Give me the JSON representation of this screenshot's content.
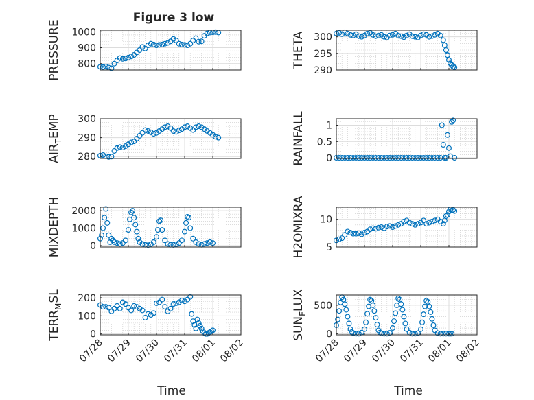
{
  "figure": {
    "title": "Figure 3 low",
    "marker_color": "#0072bd",
    "x_ticks": [
      "07/28",
      "07/29",
      "07/30",
      "07/31",
      "08/01",
      "08/02"
    ],
    "xlabel": "Time"
  },
  "chart_data": [
    {
      "type": "scatter",
      "ylabel": "PRESSURE",
      "xlim": [
        0,
        5
      ],
      "ylim": [
        760,
        1010
      ],
      "yticks": [
        "800",
        "900",
        "1000"
      ],
      "ytick_values": [
        800,
        900,
        1000
      ],
      "x": [
        0.0,
        0.1,
        0.2,
        0.3,
        0.4,
        0.5,
        0.6,
        0.7,
        0.8,
        0.9,
        1.0,
        1.1,
        1.2,
        1.3,
        1.4,
        1.5,
        1.6,
        1.7,
        1.8,
        1.9,
        2.0,
        2.1,
        2.2,
        2.3,
        2.4,
        2.5,
        2.6,
        2.7,
        2.8,
        2.9,
        3.0,
        3.1,
        3.2,
        3.3,
        3.4,
        3.5,
        3.6,
        3.7,
        3.8,
        3.9,
        4.0,
        4.1,
        4.2
      ],
      "y": [
        780,
        778,
        782,
        775,
        770,
        800,
        820,
        835,
        830,
        832,
        838,
        845,
        855,
        870,
        885,
        905,
        895,
        915,
        925,
        920,
        915,
        918,
        920,
        925,
        930,
        940,
        955,
        945,
        925,
        920,
        918,
        915,
        925,
        945,
        960,
        938,
        940,
        975,
        990,
        995,
        997,
        998,
        995
      ]
    },
    {
      "type": "scatter",
      "ylabel": "THETA",
      "xlim": [
        0,
        5
      ],
      "ylim": [
        290,
        302
      ],
      "yticks": [
        "290",
        "295",
        "300"
      ],
      "ytick_values": [
        290,
        295,
        300
      ],
      "x": [
        0.0,
        0.1,
        0.2,
        0.3,
        0.4,
        0.5,
        0.6,
        0.7,
        0.8,
        0.9,
        1.0,
        1.1,
        1.2,
        1.3,
        1.4,
        1.5,
        1.6,
        1.7,
        1.8,
        1.9,
        2.0,
        2.1,
        2.2,
        2.3,
        2.4,
        2.5,
        2.6,
        2.7,
        2.8,
        2.9,
        3.0,
        3.1,
        3.2,
        3.3,
        3.4,
        3.5,
        3.6,
        3.7,
        3.8,
        3.85,
        3.9,
        3.95,
        4.0,
        4.05,
        4.1,
        4.15,
        4.2
      ],
      "y": [
        301.0,
        301.2,
        300.8,
        301.4,
        301.0,
        300.6,
        300.4,
        300.8,
        300.2,
        300.0,
        300.4,
        301.0,
        301.2,
        300.6,
        300.2,
        300.4,
        300.6,
        300.0,
        299.8,
        300.4,
        300.6,
        301.0,
        300.4,
        300.2,
        299.9,
        300.4,
        300.8,
        300.2,
        300.0,
        299.8,
        300.4,
        300.8,
        300.6,
        300.0,
        300.2,
        300.6,
        301.0,
        300.4,
        299.0,
        297.5,
        296.0,
        294.5,
        293.0,
        292.0,
        291.5,
        291.0,
        290.8
      ]
    },
    {
      "type": "scatter",
      "ylabel": "AIR_TEMP",
      "xlim": [
        0,
        5
      ],
      "ylim": [
        279,
        300
      ],
      "yticks": [
        "280",
        "290",
        "300"
      ],
      "ytick_values": [
        280,
        290,
        300
      ],
      "x": [
        0.0,
        0.1,
        0.2,
        0.3,
        0.4,
        0.5,
        0.6,
        0.7,
        0.8,
        0.9,
        1.0,
        1.1,
        1.2,
        1.3,
        1.4,
        1.5,
        1.6,
        1.7,
        1.8,
        1.9,
        2.0,
        2.1,
        2.2,
        2.3,
        2.4,
        2.5,
        2.6,
        2.7,
        2.8,
        2.9,
        3.0,
        3.1,
        3.2,
        3.3,
        3.4,
        3.5,
        3.6,
        3.7,
        3.8,
        3.9,
        4.0,
        4.1,
        4.2
      ],
      "y": [
        280.5,
        280.8,
        280.2,
        279.8,
        280.0,
        283.0,
        284.5,
        285.0,
        284.8,
        285.5,
        286.5,
        287.5,
        288.0,
        289.5,
        291.0,
        292.5,
        294.0,
        293.5,
        292.8,
        292.0,
        292.5,
        293.5,
        294.5,
        295.5,
        296.0,
        295.0,
        293.5,
        293.0,
        293.8,
        294.5,
        295.5,
        296.0,
        295.0,
        294.0,
        295.5,
        296.0,
        295.5,
        294.5,
        293.5,
        292.5,
        291.5,
        290.5,
        290.0
      ]
    },
    {
      "type": "scatter",
      "ylabel": "RAINFALL",
      "xlim": [
        0,
        5
      ],
      "ylim": [
        -0.02,
        1.2
      ],
      "yticks": [
        "0",
        "0.5",
        "1"
      ],
      "ytick_values": [
        0,
        0.5,
        1
      ],
      "x": [
        0.0,
        0.1,
        0.2,
        0.3,
        0.4,
        0.5,
        0.6,
        0.7,
        0.8,
        0.9,
        1.0,
        1.1,
        1.2,
        1.3,
        1.4,
        1.5,
        1.6,
        1.7,
        1.8,
        1.9,
        2.0,
        2.1,
        2.2,
        2.3,
        2.4,
        2.5,
        2.6,
        2.7,
        2.8,
        2.9,
        3.0,
        3.1,
        3.2,
        3.3,
        3.4,
        3.5,
        3.6,
        3.7,
        3.75,
        3.8,
        3.85,
        3.9,
        3.95,
        4.0,
        4.05,
        4.1,
        4.15,
        4.2
      ],
      "y": [
        0,
        0,
        0,
        0,
        0,
        0,
        0,
        0,
        0,
        0,
        0,
        0,
        0,
        0,
        0,
        0,
        0,
        0,
        0,
        0,
        0,
        0,
        0,
        0,
        0,
        0,
        0,
        0,
        0,
        0,
        0,
        0,
        0,
        0,
        0,
        0,
        0,
        0,
        1.0,
        0.4,
        0.0,
        0.0,
        0.7,
        0.3,
        0.05,
        1.1,
        1.15,
        0.0
      ]
    },
    {
      "type": "scatter",
      "ylabel": "MIXDEPTH",
      "xlim": [
        0,
        5
      ],
      "ylim": [
        -80,
        2200
      ],
      "yticks": [
        "0",
        "1000",
        "2000"
      ],
      "ytick_values": [
        0,
        1000,
        2000
      ],
      "x": [
        0.0,
        0.05,
        0.1,
        0.15,
        0.2,
        0.25,
        0.3,
        0.35,
        0.4,
        0.45,
        0.5,
        0.6,
        0.7,
        0.8,
        0.9,
        1.0,
        1.05,
        1.1,
        1.15,
        1.2,
        1.25,
        1.3,
        1.35,
        1.4,
        1.5,
        1.6,
        1.7,
        1.8,
        1.9,
        2.0,
        2.05,
        2.1,
        2.15,
        2.2,
        2.3,
        2.4,
        2.5,
        2.6,
        2.7,
        2.8,
        2.9,
        3.0,
        3.05,
        3.1,
        3.15,
        3.2,
        3.3,
        3.4,
        3.5,
        3.6,
        3.7,
        3.8,
        3.9,
        4.0
      ],
      "y": [
        400,
        600,
        1000,
        1600,
        2100,
        1300,
        600,
        200,
        400,
        300,
        200,
        150,
        100,
        150,
        300,
        900,
        1500,
        1900,
        2000,
        1600,
        1200,
        800,
        400,
        200,
        100,
        50,
        30,
        80,
        200,
        500,
        900,
        1400,
        1450,
        900,
        300,
        100,
        50,
        40,
        80,
        150,
        300,
        800,
        1300,
        1650,
        1600,
        1000,
        400,
        200,
        100,
        50,
        100,
        150,
        200,
        150
      ]
    },
    {
      "type": "scatter",
      "ylabel": "H2OMIXRA",
      "xlim": [
        0,
        5
      ],
      "ylim": [
        5,
        12.2
      ],
      "yticks": [
        "5",
        "10"
      ],
      "ytick_values": [
        5,
        10
      ],
      "x": [
        0.0,
        0.1,
        0.2,
        0.3,
        0.4,
        0.5,
        0.6,
        0.7,
        0.8,
        0.9,
        1.0,
        1.1,
        1.2,
        1.3,
        1.4,
        1.5,
        1.6,
        1.7,
        1.8,
        1.9,
        2.0,
        2.1,
        2.2,
        2.3,
        2.4,
        2.5,
        2.6,
        2.7,
        2.8,
        2.9,
        3.0,
        3.1,
        3.2,
        3.3,
        3.4,
        3.5,
        3.6,
        3.7,
        3.8,
        3.85,
        3.9,
        3.95,
        4.0,
        4.05,
        4.1,
        4.15,
        4.2
      ],
      "y": [
        6.2,
        6.4,
        6.6,
        7.2,
        7.8,
        7.6,
        7.4,
        7.4,
        7.5,
        7.3,
        7.6,
        7.8,
        8.2,
        8.4,
        8.3,
        8.5,
        8.6,
        8.4,
        8.7,
        8.8,
        8.6,
        8.8,
        9.0,
        9.2,
        9.6,
        9.8,
        9.4,
        9.2,
        9.0,
        9.2,
        9.4,
        9.8,
        9.2,
        9.4,
        9.6,
        9.8,
        10.0,
        9.6,
        9.2,
        9.8,
        10.6,
        10.8,
        11.4,
        11.8,
        11.6,
        11.7,
        11.5
      ]
    },
    {
      "type": "scatter",
      "ylabel": "TERR_MSL",
      "xlim": [
        0,
        5
      ],
      "ylim": [
        -5,
        215
      ],
      "yticks": [
        "0",
        "100",
        "200"
      ],
      "ytick_values": [
        0,
        100,
        200
      ],
      "x": [
        0.0,
        0.1,
        0.2,
        0.3,
        0.4,
        0.5,
        0.6,
        0.7,
        0.8,
        0.9,
        1.0,
        1.1,
        1.2,
        1.3,
        1.4,
        1.5,
        1.6,
        1.7,
        1.8,
        1.9,
        2.0,
        2.1,
        2.2,
        2.3,
        2.4,
        2.5,
        2.6,
        2.7,
        2.8,
        2.9,
        3.0,
        3.1,
        3.2,
        3.25,
        3.3,
        3.35,
        3.4,
        3.45,
        3.5,
        3.55,
        3.6,
        3.65,
        3.7,
        3.75,
        3.8,
        3.85,
        3.9,
        3.95,
        4.0
      ],
      "y": [
        160,
        150,
        150,
        145,
        125,
        140,
        155,
        140,
        175,
        165,
        145,
        130,
        155,
        150,
        140,
        130,
        90,
        110,
        105,
        115,
        170,
        175,
        190,
        150,
        125,
        140,
        165,
        170,
        175,
        185,
        180,
        190,
        205,
        110,
        70,
        50,
        30,
        80,
        60,
        45,
        30,
        15,
        5,
        0,
        0,
        5,
        10,
        15,
        20
      ]
    },
    {
      "type": "scatter",
      "ylabel": "SUN_FLUX",
      "xlim": [
        0,
        5
      ],
      "ylim": [
        -20,
        680
      ],
      "yticks": [
        "0",
        "500"
      ],
      "ytick_values": [
        0,
        500
      ],
      "x": [
        0.0,
        0.05,
        0.1,
        0.15,
        0.2,
        0.25,
        0.3,
        0.35,
        0.4,
        0.45,
        0.5,
        0.55,
        0.6,
        0.7,
        0.8,
        0.9,
        1.0,
        1.05,
        1.1,
        1.15,
        1.2,
        1.25,
        1.3,
        1.35,
        1.4,
        1.45,
        1.5,
        1.55,
        1.6,
        1.7,
        1.8,
        1.9,
        2.0,
        2.05,
        2.1,
        2.15,
        2.2,
        2.25,
        2.3,
        2.35,
        2.4,
        2.45,
        2.5,
        2.6,
        2.7,
        2.8,
        2.9,
        3.0,
        3.05,
        3.1,
        3.15,
        3.2,
        3.25,
        3.3,
        3.35,
        3.4,
        3.45,
        3.5,
        3.6,
        3.7,
        3.8,
        3.9,
        4.0,
        4.05,
        4.1
      ],
      "y": [
        150,
        250,
        400,
        550,
        640,
        600,
        520,
        420,
        300,
        180,
        80,
        30,
        10,
        0,
        0,
        20,
        80,
        200,
        350,
        480,
        600,
        580,
        500,
        400,
        280,
        160,
        60,
        20,
        5,
        0,
        0,
        15,
        100,
        220,
        360,
        500,
        620,
        600,
        520,
        420,
        300,
        180,
        80,
        20,
        0,
        0,
        10,
        80,
        200,
        340,
        480,
        580,
        560,
        480,
        380,
        260,
        150,
        60,
        10,
        0,
        0,
        0,
        0,
        0,
        0
      ]
    }
  ]
}
